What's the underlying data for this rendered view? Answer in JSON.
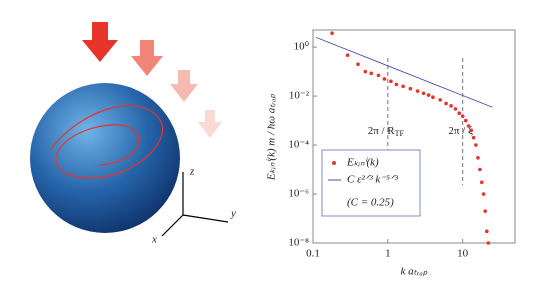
{
  "illustration": {
    "axis_labels": [
      "z",
      "y",
      "x"
    ]
  },
  "chart_data": {
    "type": "scatter",
    "xlabel": "k aₜᵣₐₚ",
    "ylabel": "Eₖᵢₙⁱ(k) m / ħω aₜᵣₐₚ",
    "log_x": true,
    "log_y": true,
    "xlim": [
      0.1,
      50
    ],
    "ylim": [
      1e-08,
      5
    ],
    "xticks": [
      0.1,
      1,
      10
    ],
    "yticks": [
      {
        "value": 1,
        "label": "10⁰"
      },
      {
        "value": 0.01,
        "label": "10⁻²"
      },
      {
        "value": 0.0001,
        "label": "10⁻⁴"
      },
      {
        "value": 1e-06,
        "label": "10⁻⁶"
      },
      {
        "value": 1e-08,
        "label": "10⁻⁸"
      }
    ],
    "series": [
      {
        "name": "Eₖᵢₙⁱ(k)",
        "color": "#e8332a",
        "style": "markers",
        "x": [
          0.18,
          0.29,
          0.4,
          0.5,
          0.6,
          0.75,
          0.9,
          1.1,
          1.3,
          1.6,
          2,
          2.5,
          3,
          3.5,
          4,
          5,
          6,
          7,
          8,
          9,
          10,
          11,
          12,
          13,
          14,
          15,
          16,
          17,
          18,
          19,
          20,
          21,
          22
        ],
        "values": [
          3.7,
          0.47,
          0.2,
          0.1,
          0.085,
          0.07,
          0.05,
          0.04,
          0.03,
          0.025,
          0.02,
          0.016,
          0.013,
          0.011,
          0.009,
          0.007,
          0.005,
          0.004,
          0.003,
          0.002,
          0.0015,
          0.001,
          0.0006,
          0.0004,
          0.0002,
          0.0001,
          3e-05,
          1e-05,
          3e-06,
          1e-06,
          2e-07,
          3e-08,
          1e-08
        ]
      },
      {
        "name": "C ε²ᐟ³ k⁻⁵ᐟ³",
        "color": "#4a4aa8",
        "style": "line",
        "x": [
          0.11,
          25
        ],
        "values": [
          2.5,
          0.0035
        ]
      }
    ],
    "legend_note": "(C = 0.25)",
    "annotations": [
      {
        "x": 1,
        "text": "2π / R",
        "sub": "TF"
      },
      {
        "x": 10,
        "text": "2π / ξ"
      }
    ]
  }
}
